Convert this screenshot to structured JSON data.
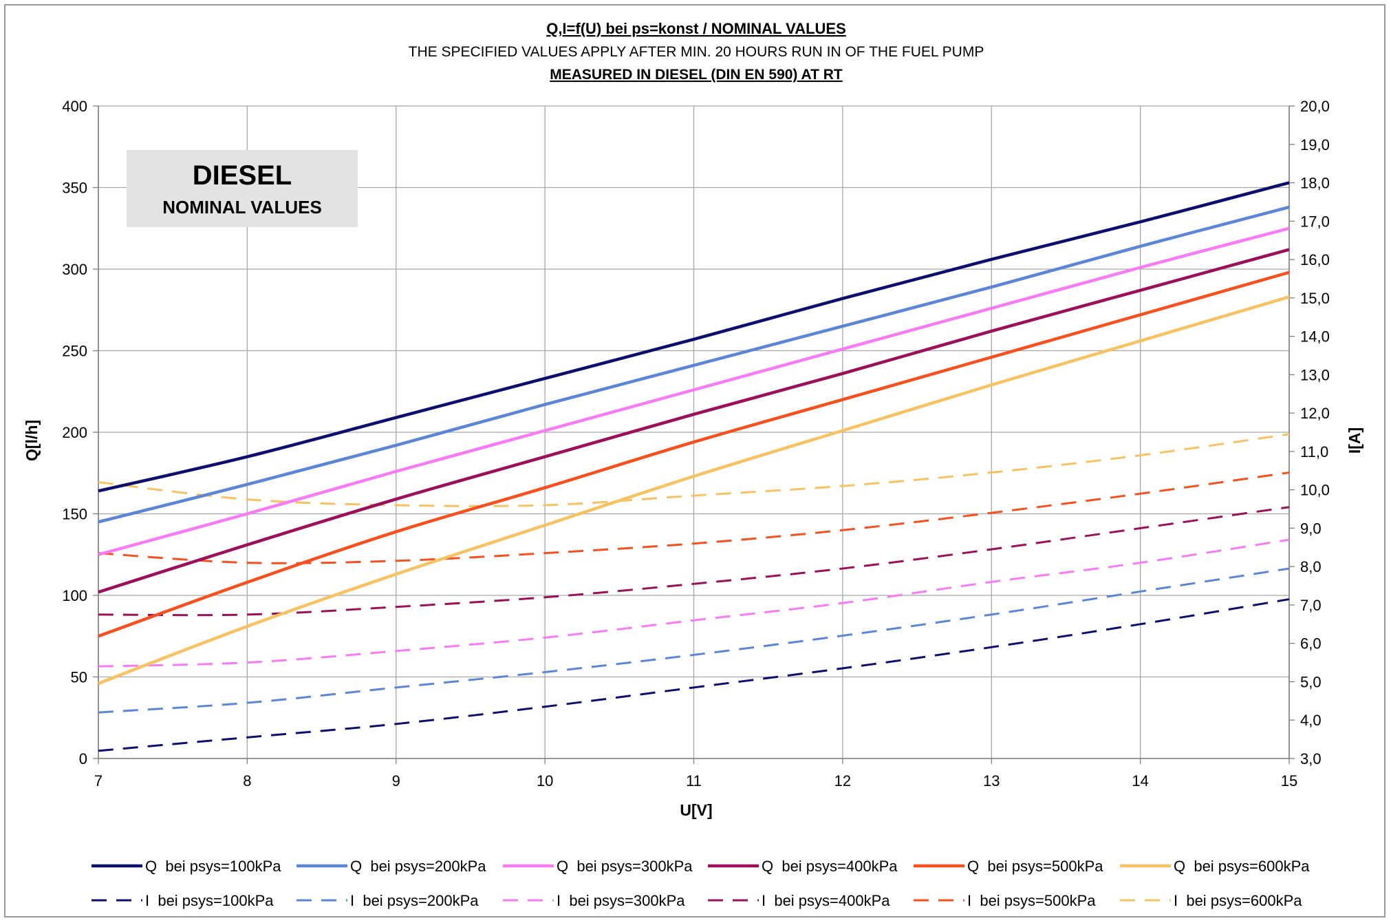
{
  "chart_data": {
    "type": "line",
    "title": "Q,I=f(U) bei ps=konst / NOMINAL VALUES",
    "subtitle": "THE SPECIFIED VALUES APPLY AFTER MIN. 20 HOURS RUN IN OF THE FUEL PUMP",
    "subtitle2": "MEASURED IN DIESEL (DIN EN 590) AT RT",
    "xlabel": "U[V]",
    "ylabel": "Q[l/h]",
    "y2label": "I[A]",
    "xlim": [
      7,
      15
    ],
    "ylim": [
      0,
      400
    ],
    "y2lim": [
      3,
      20
    ],
    "x_ticks": [
      "7",
      "8",
      "9",
      "10",
      "11",
      "12",
      "13",
      "14",
      "15"
    ],
    "y_ticks": [
      "0",
      "50",
      "100",
      "150",
      "200",
      "250",
      "300",
      "350",
      "400"
    ],
    "y2_ticks": [
      "3,0",
      "4,0",
      "5,0",
      "6,0",
      "7,0",
      "8,0",
      "9,0",
      "10,0",
      "11,0",
      "12,0",
      "13,0",
      "14,0",
      "15,0",
      "16,0",
      "17,0",
      "18,0",
      "19,0",
      "20,0"
    ],
    "grid": true,
    "annotation": {
      "title": "DIESEL",
      "subtitle": "NOMINAL VALUES"
    },
    "x": [
      7,
      8,
      9,
      10,
      11,
      12,
      13,
      14,
      15
    ],
    "series": [
      {
        "name": "Q  bei psys=100kPa",
        "axis": "left",
        "dash": false,
        "color": "#0d0f6e",
        "values": [
          164,
          185,
          209,
          233,
          257,
          282,
          306,
          329,
          353
        ]
      },
      {
        "name": "Q  bei psys=200kPa",
        "axis": "left",
        "dash": false,
        "color": "#5b86d6",
        "values": [
          145,
          168,
          192,
          217,
          241,
          265,
          289,
          314,
          338
        ]
      },
      {
        "name": "Q  bei psys=300kPa",
        "axis": "left",
        "dash": false,
        "color": "#f77bf5",
        "values": [
          125,
          150,
          176,
          201,
          226,
          251,
          276,
          301,
          325
        ]
      },
      {
        "name": "Q  bei psys=400kPa",
        "axis": "left",
        "dash": false,
        "color": "#9c0f5b",
        "values": [
          102,
          131,
          159,
          185,
          211,
          236,
          262,
          287,
          312
        ]
      },
      {
        "name": "Q  bei psys=500kPa",
        "axis": "left",
        "dash": false,
        "color": "#f5501e",
        "values": [
          75,
          108,
          139,
          166,
          194,
          220,
          246,
          272,
          298
        ]
      },
      {
        "name": "Q  bei psys=600kPa",
        "axis": "left",
        "dash": false,
        "color": "#f7c261",
        "values": [
          46,
          81,
          113,
          143,
          173,
          201,
          229,
          256,
          283
        ]
      },
      {
        "name": "I  bei psys=100kPa",
        "axis": "right",
        "dash": true,
        "color": "#0d0f6e",
        "values": [
          3.2,
          3.55,
          3.9,
          4.35,
          4.85,
          5.35,
          5.9,
          6.5,
          7.15
        ]
      },
      {
        "name": "I  bei psys=200kPa",
        "axis": "right",
        "dash": true,
        "color": "#5b86d6",
        "values": [
          4.2,
          4.45,
          4.85,
          5.25,
          5.7,
          6.2,
          6.75,
          7.35,
          7.95
        ]
      },
      {
        "name": "I  bei psys=300kPa",
        "axis": "right",
        "dash": true,
        "color": "#f77bf5",
        "values": [
          5.4,
          5.5,
          5.8,
          6.15,
          6.6,
          7.05,
          7.6,
          8.1,
          8.7
        ]
      },
      {
        "name": "I  bei psys=400kPa",
        "axis": "right",
        "dash": true,
        "color": "#9c0f5b",
        "values": [
          6.75,
          6.75,
          6.95,
          7.2,
          7.55,
          7.95,
          8.45,
          9.0,
          9.55
        ]
      },
      {
        "name": "I  bei psys=500kPa",
        "axis": "right",
        "dash": true,
        "color": "#f5501e",
        "values": [
          8.35,
          8.1,
          8.15,
          8.35,
          8.6,
          8.95,
          9.4,
          9.9,
          10.45
        ]
      },
      {
        "name": "I  bei psys=600kPa",
        "axis": "right",
        "dash": true,
        "color": "#f7c261",
        "values": [
          10.2,
          9.75,
          9.6,
          9.6,
          9.85,
          10.1,
          10.45,
          10.9,
          11.45
        ]
      }
    ]
  }
}
